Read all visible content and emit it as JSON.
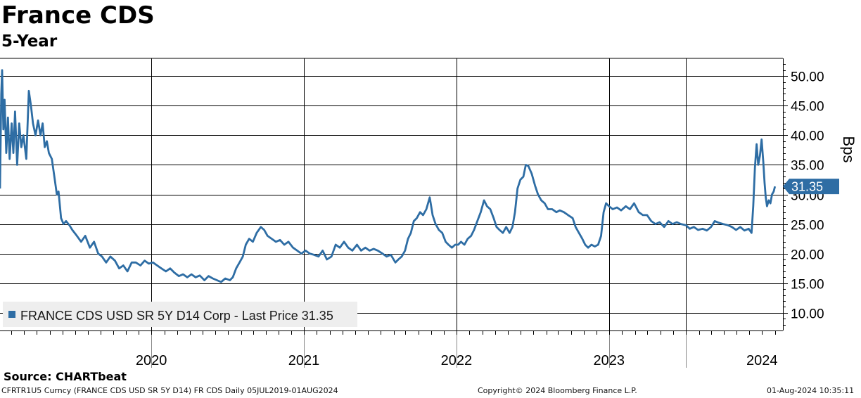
{
  "title": "France CDS",
  "subtitle": "5-Year",
  "source": "Source: CHARTbeat",
  "footer": {
    "left": "CFRTR1U5 Curncy (FRANCE CDS USD SR 5Y D14) FR CDS  Daily 05JUL2019-01AUG2024",
    "center": "Copyright© 2024 Bloomberg Finance L.P.",
    "right": "01-Aug-2024 10:35:11"
  },
  "colors": {
    "line": "#2e6da4",
    "grid": "#000000",
    "badge": "#2e6da4",
    "legend_bg": "#eeeeee"
  },
  "chart_data": {
    "type": "line",
    "title": "France CDS",
    "subtitle": "5-Year",
    "ylabel": "Bps",
    "ylim": [
      7.0,
      53.0
    ],
    "yticks": [
      10.0,
      15.0,
      20.0,
      25.0,
      30.0,
      35.0,
      40.0,
      45.0,
      50.0
    ],
    "ytick_labels": [
      "10.00",
      "15.00",
      "20.00",
      "25.00",
      "30.00",
      "35.00",
      "40.00",
      "45.00",
      "50.00"
    ],
    "xlim": [
      "2019-07-05",
      "2024-08-20"
    ],
    "year_labels": [
      {
        "label": "2020",
        "x": "2020-07-01"
      },
      {
        "label": "2021",
        "x": "2021-07-01"
      },
      {
        "label": "2022",
        "x": "2022-07-01"
      },
      {
        "label": "2023",
        "x": "2023-07-01"
      },
      {
        "label": "2024",
        "x": "2024-07-01"
      }
    ],
    "grid_x": [
      "2020-07-01",
      "2021-07-01",
      "2022-07-01",
      "2023-07-01",
      "2024-01-01"
    ],
    "legend": "FRANCE CDS USD SR 5Y D14 Corp - Last Price 31.35",
    "legend_position": "bottom-left",
    "last_price": "31.35",
    "grid": true,
    "series": [
      {
        "name": "FRANCE CDS USD SR 5Y D14 Corp",
        "points": [
          [
            "2019-07-05",
            31.0
          ],
          [
            "2019-07-08",
            47.0
          ],
          [
            "2019-07-10",
            51.0
          ],
          [
            "2019-07-13",
            41.0
          ],
          [
            "2019-07-16",
            46.0
          ],
          [
            "2019-07-20",
            37.0
          ],
          [
            "2019-07-24",
            43.0
          ],
          [
            "2019-07-28",
            36.0
          ],
          [
            "2019-08-02",
            42.0
          ],
          [
            "2019-08-06",
            37.0
          ],
          [
            "2019-08-10",
            44.0
          ],
          [
            "2019-08-15",
            35.0
          ],
          [
            "2019-08-20",
            42.0
          ],
          [
            "2019-08-25",
            38.0
          ],
          [
            "2019-08-30",
            40.0
          ],
          [
            "2019-09-06",
            36.0
          ],
          [
            "2019-09-12",
            47.5
          ],
          [
            "2019-09-17",
            45.0
          ],
          [
            "2019-09-22",
            42.0
          ],
          [
            "2019-09-28",
            40.0
          ],
          [
            "2019-10-04",
            42.5
          ],
          [
            "2019-10-10",
            40.0
          ],
          [
            "2019-10-15",
            42.0
          ],
          [
            "2019-10-20",
            38.0
          ],
          [
            "2019-10-25",
            39.0
          ],
          [
            "2019-10-30",
            37.0
          ],
          [
            "2019-11-06",
            36.0
          ],
          [
            "2019-11-12",
            33.0
          ],
          [
            "2019-11-18",
            30.0
          ],
          [
            "2019-11-22",
            30.5
          ],
          [
            "2019-11-28",
            26.0
          ],
          [
            "2019-12-04",
            25.0
          ],
          [
            "2019-12-10",
            25.5
          ],
          [
            "2019-12-18",
            24.8
          ],
          [
            "2019-12-25",
            24.0
          ],
          [
            "2020-01-05",
            23.0
          ],
          [
            "2020-01-15",
            22.0
          ],
          [
            "2020-01-25",
            23.0
          ],
          [
            "2020-02-05",
            21.0
          ],
          [
            "2020-02-15",
            22.0
          ],
          [
            "2020-02-25",
            20.0
          ],
          [
            "2020-03-05",
            19.5
          ],
          [
            "2020-03-15",
            18.5
          ],
          [
            "2020-03-25",
            19.5
          ],
          [
            "2020-04-05",
            18.8
          ],
          [
            "2020-04-15",
            17.5
          ],
          [
            "2020-04-25",
            18.0
          ],
          [
            "2020-05-05",
            17.0
          ],
          [
            "2020-05-15",
            18.5
          ],
          [
            "2020-05-25",
            18.5
          ],
          [
            "2020-06-05",
            18.0
          ],
          [
            "2020-06-15",
            18.8
          ],
          [
            "2020-06-25",
            18.3
          ],
          [
            "2020-07-05",
            18.5
          ],
          [
            "2020-07-15",
            18.0
          ],
          [
            "2020-07-25",
            17.5
          ],
          [
            "2020-08-05",
            17.0
          ],
          [
            "2020-08-15",
            17.5
          ],
          [
            "2020-08-25",
            16.8
          ],
          [
            "2020-09-05",
            16.2
          ],
          [
            "2020-09-15",
            16.5
          ],
          [
            "2020-09-25",
            16.0
          ],
          [
            "2020-10-05",
            16.5
          ],
          [
            "2020-10-15",
            16.0
          ],
          [
            "2020-10-25",
            16.3
          ],
          [
            "2020-11-05",
            15.5
          ],
          [
            "2020-11-15",
            16.2
          ],
          [
            "2020-11-25",
            15.8
          ],
          [
            "2020-12-05",
            15.5
          ],
          [
            "2020-12-15",
            15.2
          ],
          [
            "2020-12-25",
            15.8
          ],
          [
            "2021-01-05",
            15.5
          ],
          [
            "2021-01-12",
            16.0
          ],
          [
            "2021-01-20",
            17.5
          ],
          [
            "2021-01-28",
            18.5
          ],
          [
            "2021-02-05",
            19.5
          ],
          [
            "2021-02-12",
            21.5
          ],
          [
            "2021-02-20",
            22.5
          ],
          [
            "2021-03-01",
            22.0
          ],
          [
            "2021-03-10",
            23.5
          ],
          [
            "2021-03-20",
            24.5
          ],
          [
            "2021-03-28",
            24.0
          ],
          [
            "2021-04-05",
            23.0
          ],
          [
            "2021-04-15",
            22.5
          ],
          [
            "2021-04-25",
            22.0
          ],
          [
            "2021-05-05",
            22.3
          ],
          [
            "2021-05-15",
            21.5
          ],
          [
            "2021-05-25",
            22.0
          ],
          [
            "2021-06-05",
            21.0
          ],
          [
            "2021-06-15",
            20.5
          ],
          [
            "2021-06-25",
            20.0
          ],
          [
            "2021-07-05",
            20.5
          ],
          [
            "2021-07-15",
            20.0
          ],
          [
            "2021-07-25",
            19.8
          ],
          [
            "2021-08-05",
            19.5
          ],
          [
            "2021-08-15",
            20.5
          ],
          [
            "2021-08-25",
            19.0
          ],
          [
            "2021-09-05",
            19.5
          ],
          [
            "2021-09-15",
            21.5
          ],
          [
            "2021-09-25",
            21.0
          ],
          [
            "2021-10-05",
            22.0
          ],
          [
            "2021-10-15",
            21.0
          ],
          [
            "2021-10-25",
            20.5
          ],
          [
            "2021-11-05",
            21.5
          ],
          [
            "2021-11-15",
            20.5
          ],
          [
            "2021-11-25",
            21.0
          ],
          [
            "2021-12-05",
            20.5
          ],
          [
            "2021-12-15",
            20.8
          ],
          [
            "2021-12-25",
            20.5
          ],
          [
            "2022-01-05",
            20.0
          ],
          [
            "2022-01-15",
            19.5
          ],
          [
            "2022-01-25",
            19.8
          ],
          [
            "2022-02-05",
            18.5
          ],
          [
            "2022-02-12",
            19.0
          ],
          [
            "2022-02-20",
            19.5
          ],
          [
            "2022-02-28",
            20.5
          ],
          [
            "2022-03-07",
            22.5
          ],
          [
            "2022-03-14",
            23.5
          ],
          [
            "2022-03-21",
            25.5
          ],
          [
            "2022-03-28",
            26.0
          ],
          [
            "2022-04-05",
            27.0
          ],
          [
            "2022-04-12",
            26.5
          ],
          [
            "2022-04-20",
            27.5
          ],
          [
            "2022-04-28",
            29.5
          ],
          [
            "2022-05-05",
            26.5
          ],
          [
            "2022-05-12",
            25.0
          ],
          [
            "2022-05-20",
            24.0
          ],
          [
            "2022-05-28",
            23.5
          ],
          [
            "2022-06-05",
            22.0
          ],
          [
            "2022-06-12",
            21.5
          ],
          [
            "2022-06-20",
            21.0
          ],
          [
            "2022-06-28",
            21.5
          ],
          [
            "2022-07-05",
            21.5
          ],
          [
            "2022-07-12",
            22.0
          ],
          [
            "2022-07-20",
            21.5
          ],
          [
            "2022-07-28",
            22.5
          ],
          [
            "2022-08-05",
            23.0
          ],
          [
            "2022-08-12",
            24.0
          ],
          [
            "2022-08-20",
            25.5
          ],
          [
            "2022-08-28",
            27.0
          ],
          [
            "2022-09-05",
            29.0
          ],
          [
            "2022-09-12",
            28.0
          ],
          [
            "2022-09-20",
            27.5
          ],
          [
            "2022-09-28",
            26.0
          ],
          [
            "2022-10-05",
            24.5
          ],
          [
            "2022-10-12",
            24.0
          ],
          [
            "2022-10-20",
            23.5
          ],
          [
            "2022-10-28",
            24.5
          ],
          [
            "2022-11-05",
            23.5
          ],
          [
            "2022-11-12",
            24.5
          ],
          [
            "2022-11-18",
            27.0
          ],
          [
            "2022-11-24",
            31.0
          ],
          [
            "2022-12-01",
            32.5
          ],
          [
            "2022-12-08",
            33.0
          ],
          [
            "2022-12-14",
            35.0
          ],
          [
            "2022-12-20",
            34.8
          ],
          [
            "2022-12-28",
            33.5
          ],
          [
            "2023-01-05",
            31.5
          ],
          [
            "2023-01-12",
            30.0
          ],
          [
            "2023-01-20",
            29.0
          ],
          [
            "2023-01-28",
            28.5
          ],
          [
            "2023-02-05",
            27.5
          ],
          [
            "2023-02-15",
            27.5
          ],
          [
            "2023-02-25",
            27.0
          ],
          [
            "2023-03-05",
            27.3
          ],
          [
            "2023-03-15",
            27.0
          ],
          [
            "2023-03-25",
            26.5
          ],
          [
            "2023-04-05",
            26.0
          ],
          [
            "2023-04-12",
            24.5
          ],
          [
            "2023-04-20",
            23.5
          ],
          [
            "2023-04-28",
            22.5
          ],
          [
            "2023-05-05",
            21.5
          ],
          [
            "2023-05-12",
            21.0
          ],
          [
            "2023-05-20",
            21.5
          ],
          [
            "2023-05-28",
            21.2
          ],
          [
            "2023-06-05",
            21.5
          ],
          [
            "2023-06-12",
            23.0
          ],
          [
            "2023-06-18",
            27.0
          ],
          [
            "2023-06-24",
            28.5
          ],
          [
            "2023-07-01",
            28.0
          ],
          [
            "2023-07-10",
            27.5
          ],
          [
            "2023-07-20",
            27.8
          ],
          [
            "2023-07-30",
            27.3
          ],
          [
            "2023-08-10",
            28.0
          ],
          [
            "2023-08-20",
            27.5
          ],
          [
            "2023-08-30",
            28.5
          ],
          [
            "2023-09-10",
            27.0
          ],
          [
            "2023-09-20",
            26.5
          ],
          [
            "2023-09-30",
            26.5
          ],
          [
            "2023-10-10",
            25.5
          ],
          [
            "2023-10-20",
            25.0
          ],
          [
            "2023-10-30",
            25.3
          ],
          [
            "2023-11-10",
            24.5
          ],
          [
            "2023-11-20",
            25.5
          ],
          [
            "2023-11-30",
            25.0
          ],
          [
            "2023-12-10",
            25.3
          ],
          [
            "2023-12-20",
            25.0
          ],
          [
            "2024-01-01",
            24.8
          ],
          [
            "2024-01-10",
            24.2
          ],
          [
            "2024-01-20",
            24.5
          ],
          [
            "2024-01-30",
            24.0
          ],
          [
            "2024-02-10",
            24.2
          ],
          [
            "2024-02-20",
            23.9
          ],
          [
            "2024-03-01",
            24.5
          ],
          [
            "2024-03-10",
            25.5
          ],
          [
            "2024-03-20",
            25.2
          ],
          [
            "2024-03-30",
            25.0
          ],
          [
            "2024-04-10",
            24.8
          ],
          [
            "2024-04-20",
            24.5
          ],
          [
            "2024-04-30",
            24.0
          ],
          [
            "2024-05-10",
            24.5
          ],
          [
            "2024-05-20",
            23.9
          ],
          [
            "2024-05-30",
            24.2
          ],
          [
            "2024-06-06",
            23.5
          ],
          [
            "2024-06-10",
            28.0
          ],
          [
            "2024-06-14",
            34.5
          ],
          [
            "2024-06-18",
            38.5
          ],
          [
            "2024-06-22",
            35.0
          ],
          [
            "2024-06-26",
            36.5
          ],
          [
            "2024-06-30",
            39.3
          ],
          [
            "2024-07-04",
            35.5
          ],
          [
            "2024-07-07",
            32.0
          ],
          [
            "2024-07-10",
            29.5
          ],
          [
            "2024-07-13",
            28.0
          ],
          [
            "2024-07-17",
            29.0
          ],
          [
            "2024-07-21",
            28.5
          ],
          [
            "2024-07-25",
            30.0
          ],
          [
            "2024-07-29",
            30.5
          ],
          [
            "2024-08-01",
            31.35
          ]
        ]
      }
    ]
  }
}
